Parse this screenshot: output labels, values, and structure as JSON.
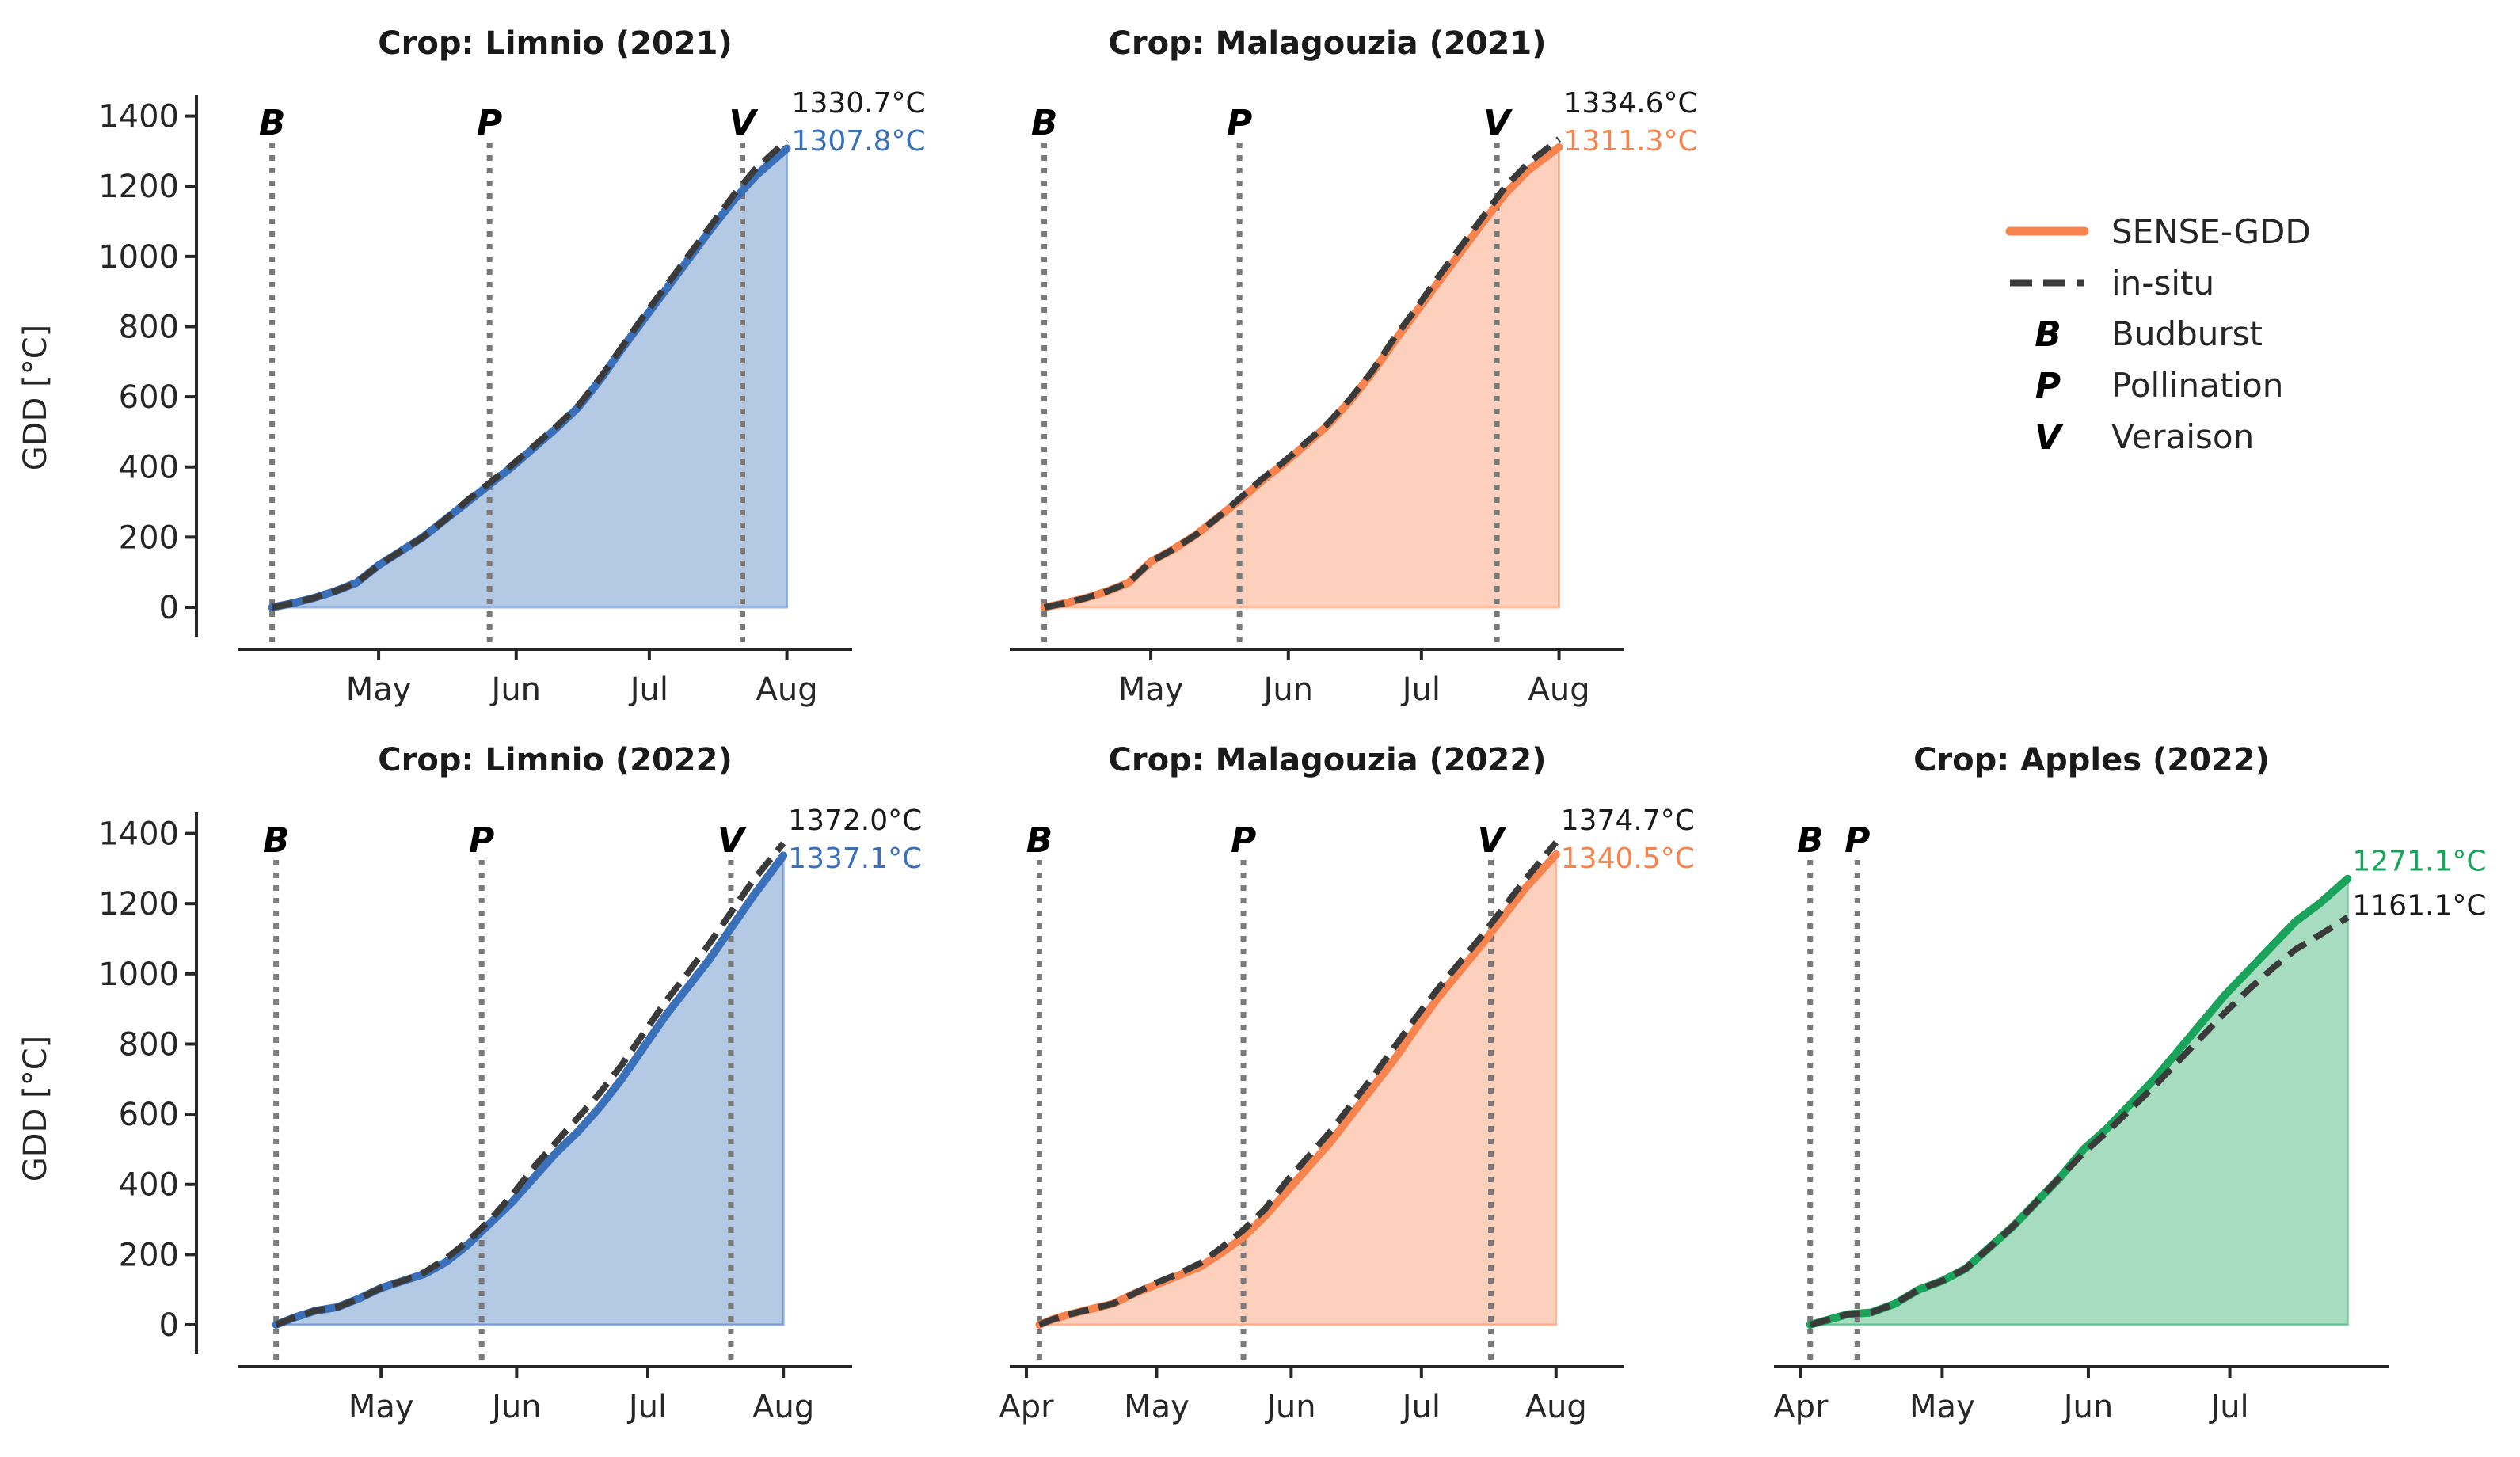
{
  "colors": {
    "limnio": "#3a70b9",
    "malagouzia": "#f7844e",
    "apples": "#1aa35a",
    "insitu": "#3a3a3a",
    "stage_line": "#7a7a7a"
  },
  "y_axis": {
    "label": "GDD [°C]",
    "ticks": [
      0,
      200,
      400,
      600,
      800,
      1000,
      1200,
      1400
    ]
  },
  "legend": {
    "sense_gdd": "SENSE-GDD",
    "in_situ": "in-situ",
    "markers": [
      {
        "symbol": "B",
        "label": "Budburst"
      },
      {
        "symbol": "P",
        "label": "Pollination"
      },
      {
        "symbol": "V",
        "label": "Veraison"
      }
    ]
  },
  "chart_data": [
    {
      "type": "area-line",
      "title": "Crop: Limnio (2021)",
      "color_key": "limnio",
      "xlim": [
        0,
        136
      ],
      "ylim": [
        -70,
        1460
      ],
      "month_ticks": [
        {
          "label": "May",
          "x": 30
        },
        {
          "label": "Jun",
          "x": 61
        },
        {
          "label": "Jul",
          "x": 91
        },
        {
          "label": "Aug",
          "x": 122
        }
      ],
      "stages": [
        {
          "symbol": "B",
          "x": 6
        },
        {
          "symbol": "P",
          "x": 55
        },
        {
          "symbol": "V",
          "x": 112
        }
      ],
      "series": [
        {
          "name": "SENSE-GDD",
          "x": [
            6,
            10,
            15,
            20,
            25,
            30,
            35,
            40,
            45,
            50,
            55,
            60,
            65,
            70,
            75,
            80,
            85,
            90,
            95,
            100,
            105,
            110,
            115,
            122
          ],
          "values": [
            0,
            10,
            25,
            45,
            70,
            120,
            160,
            200,
            250,
            300,
            350,
            400,
            455,
            510,
            570,
            650,
            740,
            825,
            910,
            995,
            1080,
            1160,
            1230,
            1307.8
          ]
        },
        {
          "name": "in-situ",
          "x": [
            6,
            10,
            15,
            20,
            25,
            30,
            35,
            40,
            45,
            50,
            55,
            60,
            65,
            70,
            75,
            80,
            85,
            90,
            95,
            100,
            105,
            110,
            115,
            122
          ],
          "values": [
            0,
            10,
            25,
            45,
            70,
            120,
            160,
            200,
            250,
            305,
            355,
            405,
            460,
            515,
            575,
            655,
            745,
            835,
            920,
            1005,
            1090,
            1175,
            1250,
            1330.7
          ]
        }
      ],
      "end_labels": [
        {
          "text": "1330.7°C",
          "series": "in-situ"
        },
        {
          "text": "1307.8°C",
          "series": "SENSE-GDD"
        }
      ]
    },
    {
      "type": "area-line",
      "title": "Crop: Malagouzia (2021)",
      "color_key": "malagouzia",
      "xlim": [
        0,
        136
      ],
      "ylim": [
        -70,
        1460
      ],
      "month_ticks": [
        {
          "label": "May",
          "x": 30
        },
        {
          "label": "Jun",
          "x": 61
        },
        {
          "label": "Jul",
          "x": 91
        },
        {
          "label": "Aug",
          "x": 122
        }
      ],
      "stages": [
        {
          "symbol": "B",
          "x": 6
        },
        {
          "symbol": "P",
          "x": 50
        },
        {
          "symbol": "V",
          "x": 108
        }
      ],
      "series": [
        {
          "name": "SENSE-GDD",
          "x": [
            6,
            10,
            15,
            20,
            25,
            30,
            35,
            40,
            45,
            50,
            55,
            60,
            65,
            70,
            75,
            80,
            85,
            90,
            95,
            100,
            105,
            110,
            115,
            122
          ],
          "values": [
            0,
            10,
            25,
            45,
            70,
            130,
            165,
            205,
            255,
            305,
            360,
            410,
            465,
            520,
            590,
            670,
            760,
            845,
            930,
            1015,
            1100,
            1180,
            1245,
            1311.3
          ]
        },
        {
          "name": "in-situ",
          "x": [
            6,
            10,
            15,
            20,
            25,
            30,
            35,
            40,
            45,
            50,
            55,
            60,
            65,
            70,
            75,
            80,
            85,
            90,
            95,
            100,
            105,
            110,
            115,
            122
          ],
          "values": [
            0,
            10,
            25,
            45,
            70,
            130,
            165,
            205,
            255,
            310,
            365,
            415,
            470,
            525,
            595,
            675,
            770,
            855,
            945,
            1030,
            1115,
            1200,
            1265,
            1334.6
          ]
        }
      ],
      "end_labels": [
        {
          "text": "1334.6°C",
          "series": "in-situ"
        },
        {
          "text": "1311.3°C",
          "series": "SENSE-GDD"
        }
      ]
    },
    {
      "type": "area-line",
      "title": "Crop: Limnio (2022)",
      "color_key": "limnio",
      "xlim": [
        -1,
        137
      ],
      "ylim": [
        -70,
        1460
      ],
      "month_ticks": [
        {
          "label": "May",
          "x": 30
        },
        {
          "label": "Jun",
          "x": 61
        },
        {
          "label": "Jul",
          "x": 91
        },
        {
          "label": "Aug",
          "x": 122
        }
      ],
      "stages": [
        {
          "symbol": "B",
          "x": 6
        },
        {
          "symbol": "P",
          "x": 53
        },
        {
          "symbol": "V",
          "x": 110
        }
      ],
      "series": [
        {
          "name": "SENSE-GDD",
          "x": [
            6,
            10,
            15,
            20,
            25,
            30,
            35,
            40,
            45,
            50,
            55,
            60,
            65,
            70,
            75,
            80,
            85,
            90,
            95,
            100,
            105,
            110,
            115,
            122
          ],
          "values": [
            0,
            20,
            40,
            50,
            75,
            105,
            125,
            145,
            180,
            230,
            290,
            350,
            420,
            490,
            550,
            620,
            700,
            790,
            880,
            960,
            1040,
            1130,
            1220,
            1337.1
          ]
        },
        {
          "name": "in-situ",
          "x": [
            6,
            10,
            15,
            20,
            25,
            30,
            35,
            40,
            45,
            50,
            55,
            60,
            65,
            70,
            75,
            80,
            85,
            90,
            95,
            100,
            105,
            110,
            115,
            122
          ],
          "values": [
            0,
            20,
            40,
            50,
            75,
            105,
            125,
            150,
            190,
            240,
            300,
            370,
            450,
            520,
            590,
            660,
            740,
            830,
            920,
            1000,
            1085,
            1175,
            1265,
            1372.0
          ]
        }
      ],
      "end_labels": [
        {
          "text": "1372.0°C",
          "series": "in-situ"
        },
        {
          "text": "1337.1°C",
          "series": "SENSE-GDD"
        }
      ]
    },
    {
      "type": "area-line",
      "title": "Crop: Malagouzia (2022)",
      "color_key": "malagouzia",
      "xlim": [
        -2,
        137
      ],
      "ylim": [
        -70,
        1460
      ],
      "month_ticks": [
        {
          "label": "Apr",
          "x": 0
        },
        {
          "label": "May",
          "x": 30
        },
        {
          "label": "Jun",
          "x": 61
        },
        {
          "label": "Jul",
          "x": 91
        },
        {
          "label": "Aug",
          "x": 122
        }
      ],
      "stages": [
        {
          "symbol": "B",
          "x": 3
        },
        {
          "symbol": "P",
          "x": 50
        },
        {
          "symbol": "V",
          "x": 107
        }
      ],
      "series": [
        {
          "name": "SENSE-GDD",
          "x": [
            3,
            6,
            10,
            15,
            20,
            25,
            30,
            35,
            40,
            45,
            50,
            55,
            60,
            65,
            70,
            75,
            80,
            85,
            90,
            95,
            100,
            105,
            110,
            115,
            122
          ],
          "values": [
            0,
            15,
            30,
            45,
            60,
            90,
            115,
            140,
            165,
            205,
            250,
            310,
            380,
            450,
            520,
            600,
            680,
            760,
            850,
            935,
            1010,
            1085,
            1165,
            1245,
            1340.5
          ]
        },
        {
          "name": "in-situ",
          "x": [
            3,
            6,
            10,
            15,
            20,
            25,
            30,
            35,
            40,
            45,
            50,
            55,
            60,
            65,
            70,
            75,
            80,
            85,
            90,
            95,
            100,
            105,
            110,
            115,
            122
          ],
          "values": [
            0,
            15,
            30,
            45,
            60,
            90,
            120,
            145,
            175,
            220,
            270,
            330,
            410,
            480,
            550,
            630,
            710,
            795,
            880,
            960,
            1035,
            1110,
            1190,
            1270,
            1374.7
          ]
        }
      ],
      "end_labels": [
        {
          "text": "1374.7°C",
          "series": "in-situ"
        },
        {
          "text": "1340.5°C",
          "series": "SENSE-GDD"
        }
      ]
    },
    {
      "type": "area-line",
      "title": "Crop: Apples (2022)",
      "color_key": "apples",
      "xlim": [
        -4,
        124
      ],
      "ylim": [
        -70,
        1460
      ],
      "month_ticks": [
        {
          "label": "Apr",
          "x": 0
        },
        {
          "label": "May",
          "x": 30
        },
        {
          "label": "Jun",
          "x": 61
        },
        {
          "label": "Jul",
          "x": 91
        }
      ],
      "stages": [
        {
          "symbol": "B",
          "x": 2
        },
        {
          "symbol": "P",
          "x": 12
        }
      ],
      "series": [
        {
          "name": "SENSE-GDD",
          "x": [
            2,
            6,
            10,
            15,
            20,
            25,
            30,
            35,
            40,
            45,
            50,
            55,
            60,
            65,
            70,
            75,
            80,
            85,
            90,
            95,
            100,
            105,
            110,
            116
          ],
          "values": [
            0,
            15,
            30,
            35,
            60,
            100,
            125,
            160,
            220,
            280,
            350,
            420,
            500,
            560,
            630,
            700,
            780,
            860,
            940,
            1010,
            1080,
            1150,
            1200,
            1271.1
          ]
        },
        {
          "name": "in-situ",
          "x": [
            2,
            6,
            10,
            15,
            20,
            25,
            30,
            35,
            40,
            45,
            50,
            55,
            60,
            65,
            70,
            75,
            80,
            85,
            90,
            95,
            100,
            105,
            110,
            116
          ],
          "values": [
            0,
            15,
            30,
            35,
            60,
            100,
            125,
            160,
            220,
            280,
            350,
            420,
            490,
            550,
            615,
            680,
            750,
            820,
            890,
            955,
            1015,
            1070,
            1110,
            1161.1
          ]
        }
      ],
      "end_labels": [
        {
          "text": "1271.1°C",
          "series": "SENSE-GDD"
        },
        {
          "text": "1161.1°C",
          "series": "in-situ"
        }
      ]
    }
  ]
}
